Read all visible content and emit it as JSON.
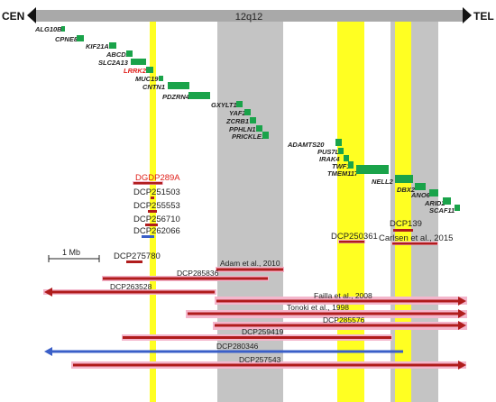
{
  "header": {
    "left_label": "CEN",
    "band_label": "12q12",
    "right_label": "TEL"
  },
  "scale_bar": {
    "label": "1 Mb"
  },
  "genes": [
    {
      "name": "ALG10B",
      "highlight": false
    },
    {
      "name": "CPNE8",
      "highlight": false
    },
    {
      "name": "KIF21A",
      "highlight": false
    },
    {
      "name": "ABCD2",
      "highlight": false
    },
    {
      "name": "SLC2A13",
      "highlight": false
    },
    {
      "name": "LRRK2",
      "highlight": true
    },
    {
      "name": "MUC19",
      "highlight": false
    },
    {
      "name": "CNTN1",
      "highlight": false
    },
    {
      "name": "PDZRN4",
      "highlight": false
    },
    {
      "name": "GXYLT1",
      "highlight": false
    },
    {
      "name": "YAF2",
      "highlight": false
    },
    {
      "name": "ZCRB1",
      "highlight": false
    },
    {
      "name": "PPHLN1",
      "highlight": false
    },
    {
      "name": "PRICKLE1",
      "highlight": false
    },
    {
      "name": "ADAMTS20",
      "highlight": false
    },
    {
      "name": "PUS7L",
      "highlight": false
    },
    {
      "name": "IRAK4",
      "highlight": false
    },
    {
      "name": "TWF1",
      "highlight": false
    },
    {
      "name": "TMEM117",
      "highlight": false
    },
    {
      "name": "NELL2",
      "highlight": false
    },
    {
      "name": "DBX2",
      "highlight": false
    },
    {
      "name": "ANO6",
      "highlight": false
    },
    {
      "name": "ARID2",
      "highlight": false
    },
    {
      "name": "SCAF11",
      "highlight": false
    }
  ],
  "cnvs": [
    {
      "label": "DGDP289A",
      "highlight": true
    },
    {
      "label": "DCP251503",
      "highlight": false
    },
    {
      "label": "DCP255553",
      "highlight": false
    },
    {
      "label": "DCP256710",
      "highlight": false
    },
    {
      "label": "DCP262066",
      "highlight": false
    },
    {
      "label": "DCP250361",
      "highlight": false
    },
    {
      "label": "DCP139",
      "highlight": false
    },
    {
      "label": "Carlsen et al., 2015",
      "highlight": false
    },
    {
      "label": "DCP275780",
      "highlight": false
    }
  ],
  "large_cnvs": [
    {
      "label": "Adam et al., 2010"
    },
    {
      "label": "DCP285836"
    },
    {
      "label": "DCP263528"
    },
    {
      "label": "Failla et al., 2008"
    },
    {
      "label": "Tonoki et al., 1998"
    },
    {
      "label": "DCP285576"
    },
    {
      "label": "DCP259419"
    },
    {
      "label": "DCP280346"
    },
    {
      "label": "DCP257543"
    }
  ],
  "colors": {
    "gene_box": "#1aa34a",
    "gene_red_text": "#e0201b",
    "deletion_bar": "#b01c1c",
    "duplication_bar": "#3a5fc8",
    "highlight_yellow": "#ffff22",
    "gray_region": "#c4c4c4",
    "pink_glow": "#f4b6cc",
    "chromosome_bar": "#a9a9a9"
  }
}
